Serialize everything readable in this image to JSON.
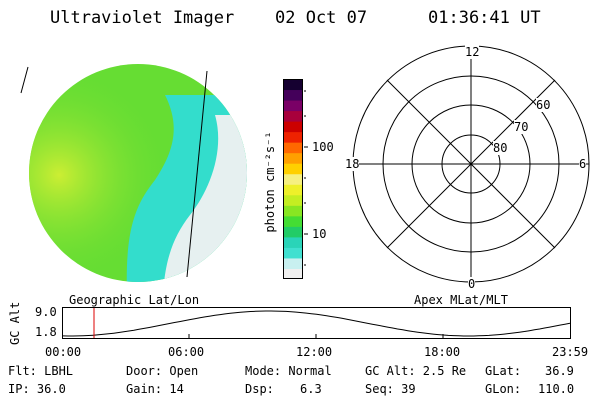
{
  "header": {
    "instrument": "Ultraviolet Imager",
    "date": "02 Oct 07",
    "time": "01:36:41 UT"
  },
  "colorbar": {
    "unit_label": "photon cm⁻²s⁻¹",
    "tick_100": "100",
    "tick_10": "10",
    "colors": [
      "#f0f0f0",
      "#c8f0f0",
      "#40e0d0",
      "#2ad4b8",
      "#22cc66",
      "#44dd33",
      "#88e622",
      "#c4ee22",
      "#eef02a",
      "#f6f080",
      "#ffd000",
      "#ffa000",
      "#ff6800",
      "#ee2200",
      "#cc0000",
      "#a8003c",
      "#7a0066",
      "#44005a",
      "#150030"
    ]
  },
  "left_panel": {
    "caption": "Geographic Lat/Lon",
    "image_colors": {
      "green": "#66dd33",
      "yellow": "#ccee33",
      "cyan": "#33ddcc",
      "white": "#e6f0f0"
    }
  },
  "right_panel": {
    "caption": "Apex MLat/MLT",
    "mlt_12": "12",
    "mlt_18": "18",
    "mlt_6": "6",
    "mlt_0": "0",
    "lat_60": "60",
    "lat_70": "70",
    "lat_80": "80"
  },
  "altitude_plot": {
    "ylabel": "GC Alt",
    "ytick_top": "9.0",
    "ytick_bottom": "1.8",
    "xticks": [
      "00:00",
      "06:00",
      "12:00",
      "18:00",
      "23:59"
    ],
    "marker_color": "#dd0000"
  },
  "footer": {
    "flt": "Flt: LBHL",
    "ip": "IP: 36.0",
    "door": "Door: Open",
    "gain": "Gain: 14",
    "mode": "Mode: Normal",
    "dsp_label": "Dsp:",
    "dsp_value": "6.3",
    "gc_alt": "GC Alt: 2.5 Re",
    "seq": "Seq: 39",
    "glat_label": "GLat:",
    "glat_value": "36.9",
    "glon_label": "GLon:",
    "glon_value": "110.0"
  }
}
